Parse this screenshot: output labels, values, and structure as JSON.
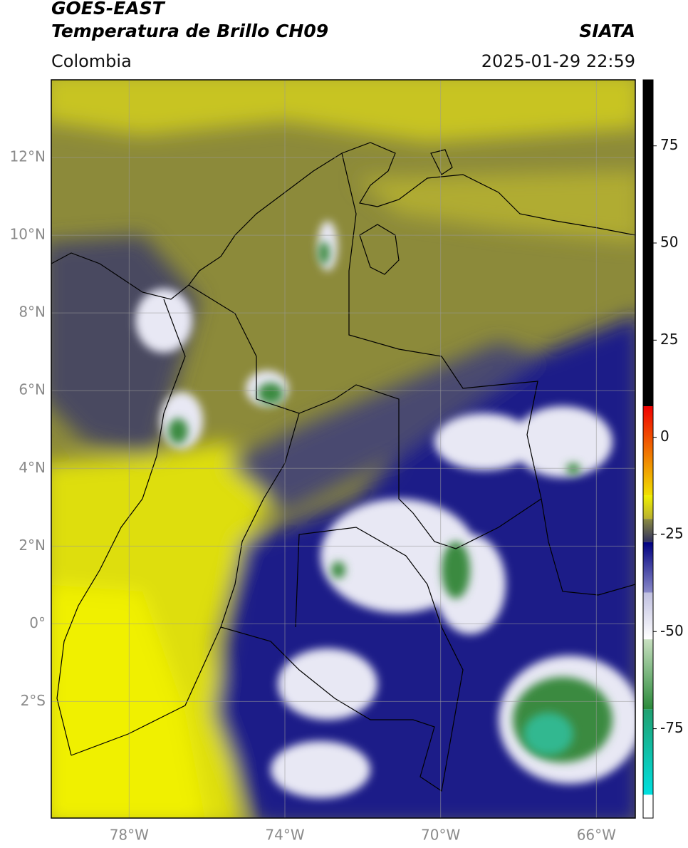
{
  "header": {
    "title_line1": "GOES-EAST",
    "title_line2": "Temperatura de Brillo CH09",
    "source": "SIATA",
    "region": "Colombia",
    "timestamp": "2025-01-29 22:59"
  },
  "map": {
    "xlim": [
      -80,
      -65
    ],
    "ylim": [
      -5,
      14
    ],
    "xticks": [
      {
        "value": -78,
        "label": "78°W"
      },
      {
        "value": -74,
        "label": "74°W"
      },
      {
        "value": -70,
        "label": "70°W"
      },
      {
        "value": -66,
        "label": "66°W"
      }
    ],
    "yticks": [
      {
        "value": 12,
        "label": "12°N"
      },
      {
        "value": 10,
        "label": "10°N"
      },
      {
        "value": 8,
        "label": "8°N"
      },
      {
        "value": 6,
        "label": "6°N"
      },
      {
        "value": 4,
        "label": "4°N"
      },
      {
        "value": 2,
        "label": "2°N"
      },
      {
        "value": 0,
        "label": "0°"
      },
      {
        "value": -2,
        "label": "2°S"
      }
    ],
    "grid": true
  },
  "colorbar": {
    "lim": [
      -98,
      92
    ],
    "ticks": [
      75,
      50,
      25,
      0,
      -25,
      -50,
      -75
    ],
    "segments": [
      {
        "from": 8,
        "to": 92,
        "color_low": "#000000",
        "color_high": "#000000"
      },
      {
        "from": -15,
        "to": 8,
        "color_low": "#f0e000",
        "color_high": "#f00000"
      },
      {
        "from": -21,
        "to": -15,
        "color_low": "#b8b030",
        "color_high": "#f0f000"
      },
      {
        "from": -27,
        "to": -21,
        "color_low": "#303060",
        "color_high": "#8a8a40"
      },
      {
        "from": -40,
        "to": -27,
        "color_low": "#8a8ac8",
        "color_high": "#000080"
      },
      {
        "from": -52,
        "to": -40,
        "color_low": "#ffffff",
        "color_high": "#c0c0e0"
      },
      {
        "from": -70,
        "to": -52,
        "color_low": "#2a8a3a",
        "color_high": "#c8e0c0"
      },
      {
        "from": -92,
        "to": -70,
        "color_low": "#00e0e0",
        "color_high": "#20a070"
      },
      {
        "from": -98,
        "to": -92,
        "color_low": "#ffffff",
        "color_high": "#ffffff"
      }
    ]
  }
}
